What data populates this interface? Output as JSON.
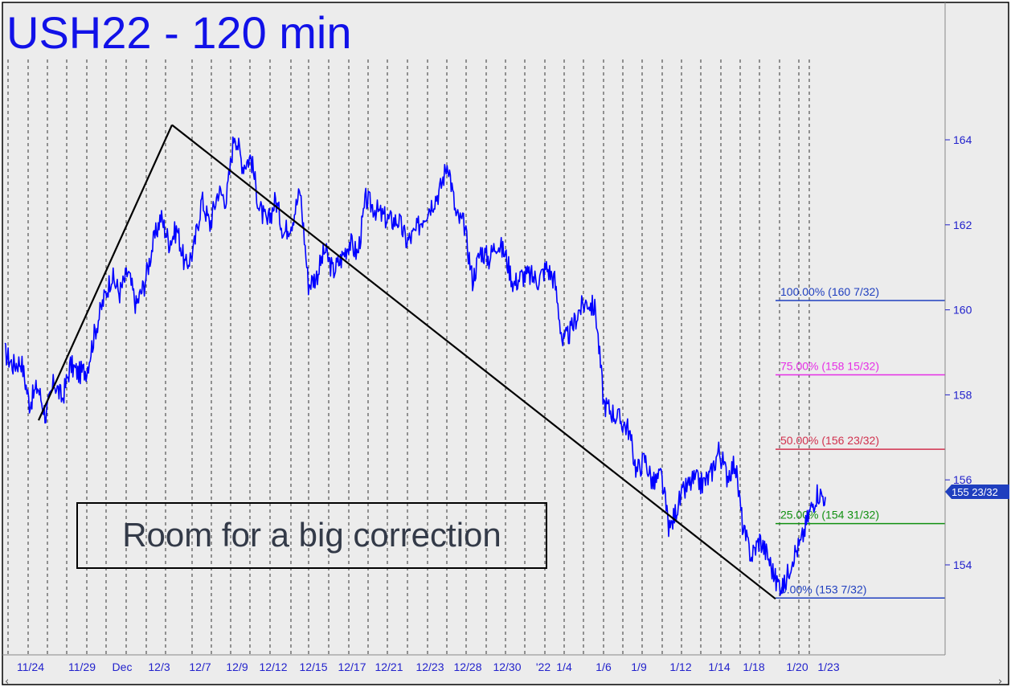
{
  "chart_data": {
    "type": "line",
    "title": "USH22 - 120 min",
    "annotation_box": "Room for a big correction",
    "x_tick_labels": [
      "11/24",
      "11/29",
      "Dec",
      "12/3",
      "12/7",
      "12/9",
      "12/12",
      "12/15",
      "12/17",
      "12/21",
      "12/23",
      "12/28",
      "12/30",
      "'22",
      "1/4",
      "1/6",
      "1/9",
      "1/12",
      "1/14",
      "1/18",
      "1/20",
      "1/23"
    ],
    "y_ticks": [
      154,
      156,
      158,
      160,
      162,
      164
    ],
    "y_tick_labels": [
      "154",
      "156",
      "158",
      "160",
      "162",
      "164"
    ],
    "ylim": [
      152.1,
      166.6
    ],
    "last_price_label": "155 23/32",
    "last_price": 155.72,
    "series": [
      {
        "values": [
          159.0,
          158.7,
          158.8,
          157.8,
          158.2,
          157.5,
          158.3,
          157.9,
          158.7,
          158.5,
          158.6,
          159.5,
          160.2,
          160.8,
          160.4,
          160.9,
          160.1,
          160.6,
          161.5,
          162.2,
          161.6,
          161.9,
          161.0,
          161.4,
          162.6,
          162.0,
          162.8,
          162.6,
          164.2,
          163.4,
          163.6,
          162.4,
          162.0,
          162.6,
          161.8,
          162.1,
          162.8,
          160.6,
          160.8,
          161.4,
          160.9,
          161.2,
          161.6,
          161.3,
          162.6,
          162.4,
          162.2,
          162.1,
          162.1,
          161.6,
          161.8,
          162.2,
          162.5,
          162.8,
          163.5,
          162.2,
          162.0,
          160.7,
          161.4,
          161.2,
          161.6,
          161.3,
          160.6,
          160.8,
          160.8,
          160.7,
          161.0,
          160.7,
          159.2,
          159.5,
          160.0,
          160.2,
          160.0,
          157.8,
          157.6,
          157.4,
          157.2,
          156.2,
          156.5,
          155.9,
          156.1,
          154.8,
          155.4,
          155.8,
          156.0,
          155.9,
          156.1,
          156.7,
          156.1,
          156.4,
          154.8,
          154.2,
          154.6,
          154.2,
          153.6,
          153.5,
          154.2,
          154.5,
          155.2,
          155.7,
          155.6
        ]
      }
    ],
    "trend_lines": [
      {
        "from": [
          157.4,
          0.0
        ],
        "to": [
          164.35,
          0.0
        ]
      },
      {
        "from": [
          164.35,
          0.0
        ],
        "to": [
          153.2,
          0.0
        ]
      }
    ],
    "fib_levels": [
      {
        "label": "100.00% (160 7/32)",
        "value": 160.22,
        "color": "#1f3fbf"
      },
      {
        "label": "75.00% (158 15/32)",
        "value": 158.47,
        "color": "#e62ee6"
      },
      {
        "label": "50.00% (156 23/32)",
        "value": 156.72,
        "color": "#d1314e"
      },
      {
        "label": "25.00% (154 31/32)",
        "value": 154.97,
        "color": "#109010"
      },
      {
        "label": "0.00% (153 7/32)",
        "value": 153.22,
        "color": "#1f3fbf"
      }
    ],
    "colors": {
      "price": "#0000ff",
      "title": "#1111e8",
      "axis_text": "#2222cc",
      "background": "#ececec"
    }
  }
}
